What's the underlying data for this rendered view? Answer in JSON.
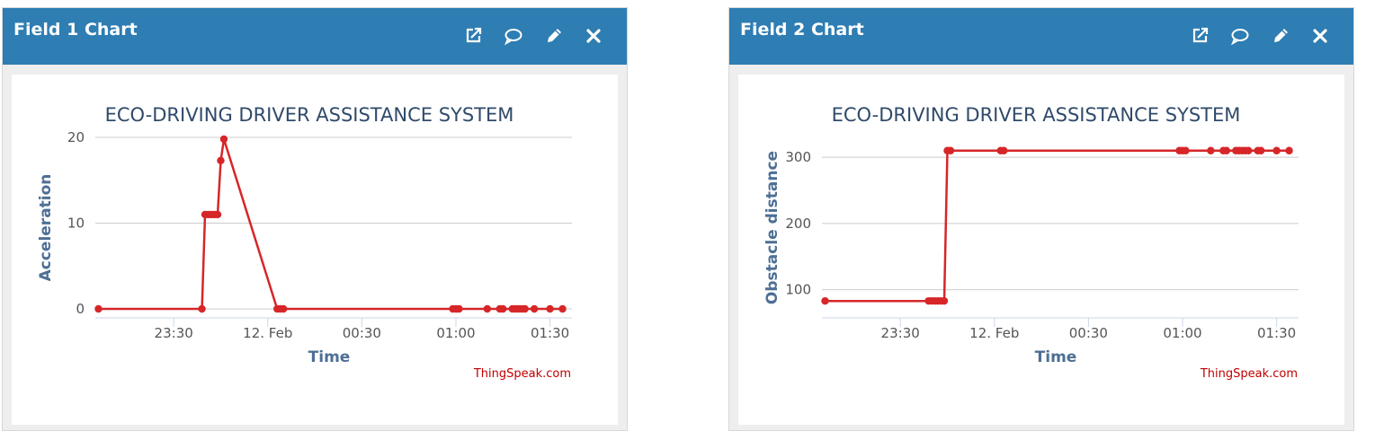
{
  "widgets": [
    {
      "title": "Field 1 Chart",
      "credit": "ThingSpeak.com",
      "icons": [
        "external-link-icon",
        "comment-icon",
        "pencil-icon",
        "close-icon"
      ]
    },
    {
      "title": "Field 2 Chart",
      "credit": "ThingSpeak.com",
      "icons": [
        "external-link-icon",
        "comment-icon",
        "pencil-icon",
        "close-icon"
      ]
    }
  ],
  "colors": {
    "header": "#2e7db3",
    "series": "#d62628",
    "title_text": "#2f4a6a",
    "axis_label": "#4d6f94",
    "credit": "#c00000"
  },
  "chart_data": [
    {
      "type": "line",
      "title": "ECO-DRIVING DRIVER ASSISTANCE SYSTEM",
      "xlabel": "Time",
      "ylabel": "Acceleration",
      "xlim": [
        "2024-02-11 23:05",
        "2024-02-12 01:37"
      ],
      "ylim": [
        0,
        20
      ],
      "grid": true,
      "y_ticks": [
        "0",
        "10",
        "20"
      ],
      "x_ticks": [
        {
          "label": "23:30",
          "x": "2024-02-11 23:30"
        },
        {
          "label": "12. Feb",
          "x": "2024-02-12 00:00"
        },
        {
          "label": "00:30",
          "x": "2024-02-12 00:30"
        },
        {
          "label": "01:00",
          "x": "2024-02-12 01:00"
        },
        {
          "label": "01:30",
          "x": "2024-02-12 01:30"
        }
      ],
      "series": [
        {
          "name": "",
          "points": [
            {
              "x": "2024-02-11 23:06",
              "y": 0
            },
            {
              "x": "2024-02-11 23:39",
              "y": 0
            },
            {
              "x": "2024-02-11 23:40",
              "y": 11
            },
            {
              "x": "2024-02-11 23:41",
              "y": 11
            },
            {
              "x": "2024-02-11 23:42",
              "y": 11
            },
            {
              "x": "2024-02-11 23:43",
              "y": 11
            },
            {
              "x": "2024-02-11 23:44",
              "y": 11
            },
            {
              "x": "2024-02-11 23:45",
              "y": 17.3
            },
            {
              "x": "2024-02-11 23:46",
              "y": 19.8
            },
            {
              "x": "2024-02-12 00:03",
              "y": 0
            },
            {
              "x": "2024-02-12 00:04",
              "y": 0
            },
            {
              "x": "2024-02-12 00:05",
              "y": 0
            },
            {
              "x": "2024-02-12 00:59",
              "y": 0
            },
            {
              "x": "2024-02-12 01:00",
              "y": 0
            },
            {
              "x": "2024-02-12 01:01",
              "y": 0
            },
            {
              "x": "2024-02-12 01:10",
              "y": 0
            },
            {
              "x": "2024-02-12 01:14",
              "y": 0
            },
            {
              "x": "2024-02-12 01:15",
              "y": 0
            },
            {
              "x": "2024-02-12 01:18",
              "y": 0
            },
            {
              "x": "2024-02-12 01:19",
              "y": 0
            },
            {
              "x": "2024-02-12 01:20",
              "y": 0
            },
            {
              "x": "2024-02-12 01:21",
              "y": 0
            },
            {
              "x": "2024-02-12 01:22",
              "y": 0
            },
            {
              "x": "2024-02-12 01:25",
              "y": 0
            },
            {
              "x": "2024-02-12 01:30",
              "y": 0
            },
            {
              "x": "2024-02-12 01:34",
              "y": 0
            }
          ]
        }
      ]
    },
    {
      "type": "line",
      "title": "ECO-DRIVING DRIVER ASSISTANCE SYSTEM",
      "xlabel": "Time",
      "ylabel": "Obstacle distance",
      "xlim": [
        "2024-02-11 23:05",
        "2024-02-12 01:37"
      ],
      "ylim": [
        71,
        330
      ],
      "grid": true,
      "y_ticks": [
        "100",
        "200",
        "300"
      ],
      "x_ticks": [
        {
          "label": "23:30",
          "x": "2024-02-11 23:30"
        },
        {
          "label": "12. Feb",
          "x": "2024-02-12 00:00"
        },
        {
          "label": "00:30",
          "x": "2024-02-12 00:30"
        },
        {
          "label": "01:00",
          "x": "2024-02-12 01:00"
        },
        {
          "label": "01:30",
          "x": "2024-02-12 01:30"
        }
      ],
      "series": [
        {
          "name": "",
          "points": [
            {
              "x": "2024-02-11 23:06",
              "y": 83
            },
            {
              "x": "2024-02-11 23:39",
              "y": 83
            },
            {
              "x": "2024-02-11 23:40",
              "y": 83
            },
            {
              "x": "2024-02-11 23:41",
              "y": 83
            },
            {
              "x": "2024-02-11 23:42",
              "y": 83
            },
            {
              "x": "2024-02-11 23:43",
              "y": 83
            },
            {
              "x": "2024-02-11 23:44",
              "y": 83
            },
            {
              "x": "2024-02-11 23:45",
              "y": 310
            },
            {
              "x": "2024-02-11 23:46",
              "y": 310
            },
            {
              "x": "2024-02-12 00:02",
              "y": 310
            },
            {
              "x": "2024-02-12 00:03",
              "y": 310
            },
            {
              "x": "2024-02-12 00:59",
              "y": 310
            },
            {
              "x": "2024-02-12 01:00",
              "y": 310
            },
            {
              "x": "2024-02-12 01:01",
              "y": 310
            },
            {
              "x": "2024-02-12 01:09",
              "y": 310
            },
            {
              "x": "2024-02-12 01:13",
              "y": 310
            },
            {
              "x": "2024-02-12 01:14",
              "y": 310
            },
            {
              "x": "2024-02-12 01:17",
              "y": 310
            },
            {
              "x": "2024-02-12 01:18",
              "y": 310
            },
            {
              "x": "2024-02-12 01:19",
              "y": 310
            },
            {
              "x": "2024-02-12 01:20",
              "y": 310
            },
            {
              "x": "2024-02-12 01:21",
              "y": 310
            },
            {
              "x": "2024-02-12 01:24",
              "y": 310
            },
            {
              "x": "2024-02-12 01:25",
              "y": 310
            },
            {
              "x": "2024-02-12 01:30",
              "y": 310
            },
            {
              "x": "2024-02-12 01:34",
              "y": 310
            }
          ]
        }
      ]
    }
  ]
}
